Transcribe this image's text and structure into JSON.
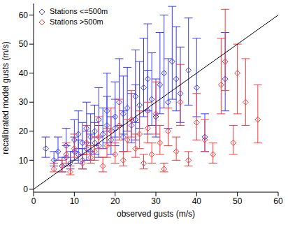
{
  "chart_data": {
    "type": "scatter",
    "x_label": "observed gusts (m/s)",
    "y_label": "recalibrated model gusts (m/s)",
    "xlim": [
      0,
      60
    ],
    "ylim": [
      -1,
      64
    ],
    "xticks": [
      0,
      10,
      20,
      30,
      40,
      50,
      60
    ],
    "yticks": [
      0,
      10,
      20,
      30,
      40,
      50,
      60
    ],
    "grid": false,
    "legend": "upper left",
    "line": {
      "x": [
        0,
        60
      ],
      "y": [
        0,
        60
      ],
      "color": "#000000"
    },
    "series": [
      {
        "name": "Stations <=500m",
        "color": "#3a3aff",
        "marker": "diamond",
        "x": [
          3,
          5,
          6,
          7,
          8,
          8,
          9,
          10,
          10,
          11,
          11,
          12,
          12,
          13,
          13,
          14,
          14,
          15,
          15,
          16,
          16,
          17,
          18,
          18,
          19,
          20,
          20,
          21,
          22,
          22,
          23,
          24,
          25,
          25,
          26,
          27,
          28,
          28,
          29,
          30,
          31,
          32,
          33,
          34,
          35,
          36,
          38,
          40,
          42,
          47
        ],
        "values": [
          14,
          10,
          13,
          8,
          11,
          15,
          9,
          13,
          17,
          12,
          19,
          10,
          16,
          14,
          21,
          18,
          13,
          20,
          16,
          24,
          15,
          19,
          22,
          27,
          17,
          25,
          21,
          30,
          18,
          26,
          28,
          22,
          32,
          24,
          29,
          35,
          27,
          38,
          31,
          25,
          36,
          40,
          30,
          44,
          38,
          33,
          41,
          35,
          18,
          38
        ],
        "error": [
          [
            3,
            4
          ],
          [
            2,
            3
          ],
          [
            3,
            5
          ],
          [
            2,
            3
          ],
          [
            3,
            4
          ],
          [
            4,
            6
          ],
          [
            2,
            4
          ],
          [
            3,
            5
          ],
          [
            4,
            7
          ],
          [
            3,
            5
          ],
          [
            5,
            8
          ],
          [
            3,
            4
          ],
          [
            4,
            7
          ],
          [
            4,
            6
          ],
          [
            5,
            9
          ],
          [
            5,
            8
          ],
          [
            3,
            6
          ],
          [
            5,
            9
          ],
          [
            4,
            7
          ],
          [
            6,
            11
          ],
          [
            4,
            7
          ],
          [
            5,
            9
          ],
          [
            6,
            10
          ],
          [
            7,
            13
          ],
          [
            5,
            8
          ],
          [
            7,
            12
          ],
          [
            6,
            10
          ],
          [
            8,
            15
          ],
          [
            5,
            9
          ],
          [
            7,
            13
          ],
          [
            8,
            14
          ],
          [
            6,
            11
          ],
          [
            9,
            16
          ],
          [
            7,
            12
          ],
          [
            8,
            15
          ],
          [
            10,
            17
          ],
          [
            8,
            14
          ],
          [
            11,
            19
          ],
          [
            9,
            16
          ],
          [
            7,
            13
          ],
          [
            10,
            18
          ],
          [
            12,
            20
          ],
          [
            9,
            15
          ],
          [
            13,
            19
          ],
          [
            11,
            18
          ],
          [
            10,
            16
          ],
          [
            12,
            18
          ],
          [
            10,
            17
          ],
          [
            5,
            8
          ],
          [
            11,
            16
          ]
        ]
      },
      {
        "name": "Stations >500m",
        "color": "#ff3a3a",
        "marker": "diamond",
        "x": [
          5,
          7,
          8,
          9,
          10,
          12,
          13,
          14,
          15,
          16,
          17,
          18,
          19,
          20,
          21,
          22,
          23,
          24,
          25,
          26,
          27,
          28,
          29,
          30,
          31,
          32,
          33,
          35,
          36,
          38,
          40,
          42,
          44,
          46,
          47,
          49,
          50,
          52,
          55
        ],
        "values": [
          7,
          8,
          12,
          6,
          14,
          9,
          16,
          11,
          13,
          18,
          8,
          15,
          20,
          12,
          22,
          10,
          17,
          24,
          14,
          19,
          9,
          21,
          12,
          26,
          16,
          7,
          20,
          13,
          30,
          10,
          23,
          17,
          12,
          36,
          44,
          16,
          40,
          30,
          24
        ],
        "error": [
          [
            1,
            2
          ],
          [
            2,
            2
          ],
          [
            3,
            4
          ],
          [
            1,
            2
          ],
          [
            3,
            5
          ],
          [
            2,
            3
          ],
          [
            4,
            6
          ],
          [
            2,
            4
          ],
          [
            3,
            5
          ],
          [
            4,
            7
          ],
          [
            2,
            3
          ],
          [
            4,
            6
          ],
          [
            5,
            8
          ],
          [
            3,
            4
          ],
          [
            5,
            9
          ],
          [
            2,
            3
          ],
          [
            4,
            7
          ],
          [
            6,
            10
          ],
          [
            3,
            5
          ],
          [
            5,
            8
          ],
          [
            2,
            3
          ],
          [
            5,
            9
          ],
          [
            3,
            4
          ],
          [
            7,
            11
          ],
          [
            4,
            6
          ],
          [
            1,
            2
          ],
          [
            5,
            8
          ],
          [
            3,
            5
          ],
          [
            8,
            13
          ],
          [
            2,
            3
          ],
          [
            6,
            10
          ],
          [
            4,
            7
          ],
          [
            3,
            4
          ],
          [
            10,
            16
          ],
          [
            10,
            18
          ],
          [
            4,
            6
          ],
          [
            14,
            10
          ],
          [
            8,
            15
          ],
          [
            8,
            12
          ]
        ]
      }
    ]
  }
}
